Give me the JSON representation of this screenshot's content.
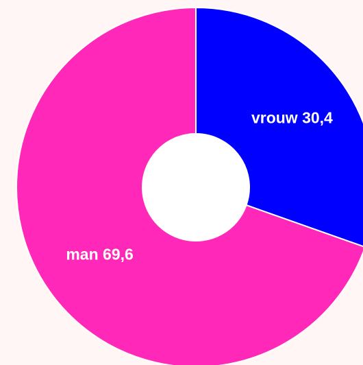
{
  "chart_data": {
    "type": "donut",
    "categories": [
      "vrouw",
      "man"
    ],
    "values": [
      30.4,
      69.6
    ],
    "value_labels": [
      "30,4",
      "69,6"
    ],
    "colors": [
      "#0000ff",
      "#ff28b9"
    ]
  }
}
